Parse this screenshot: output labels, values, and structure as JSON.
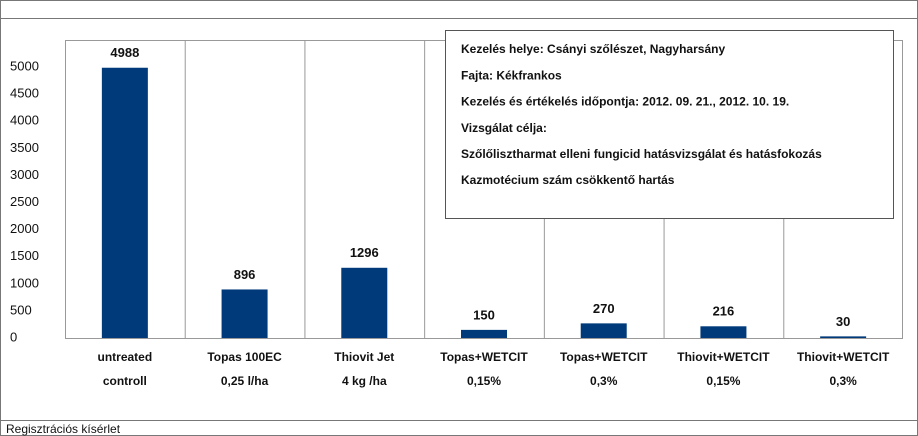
{
  "chart_data": {
    "type": "bar",
    "categories": [
      [
        "untreated",
        "controll"
      ],
      [
        "Topas 100EC",
        "0,25 l/ha"
      ],
      [
        "Thiovit Jet",
        "4 kg /ha"
      ],
      [
        "Topas+WETCIT",
        "0,15%"
      ],
      [
        "Topas+WETCIT",
        "0,3%"
      ],
      [
        "Thiovit+WETCIT",
        "0,15%"
      ],
      [
        "Thiovit+WETCIT",
        "0,3%"
      ]
    ],
    "values": [
      4988,
      896,
      1296,
      150,
      270,
      216,
      30
    ],
    "color": "#003a7a",
    "ylim": [
      0,
      5500
    ],
    "yticks": [
      0,
      500,
      1000,
      1500,
      2000,
      2500,
      3000,
      3500,
      4000,
      4500,
      5000
    ],
    "grid": true,
    "info_box": [
      "Kezelés helye: Csányi szőlészet, Nagyharsány",
      "Fajta: Kékfrankos",
      "Kezelés és értékelés időpontja: 2012. 09. 21., 2012. 10. 19.",
      "Vizsgálat célja:",
      "Szőlőlisztharmat elleni fungicid hatásvizsgálat és hatásfokozás",
      "Kazmotécium szám csökkentő hartás"
    ],
    "footer": "Regisztrációs kísérlet"
  }
}
